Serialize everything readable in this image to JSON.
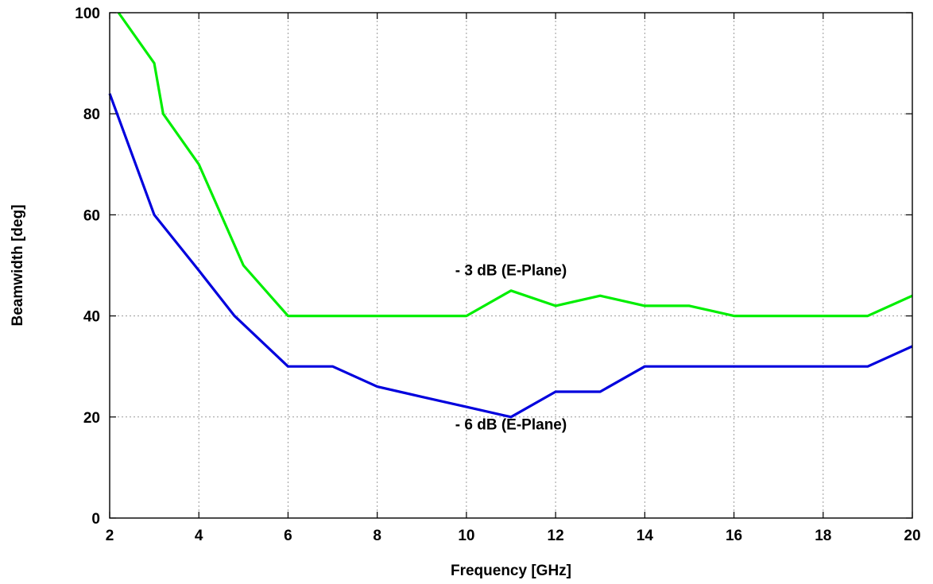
{
  "chart_data": {
    "type": "line",
    "xlabel": "Frequency [GHz]",
    "ylabel": "Beamwidth [deg]",
    "xlim": [
      2,
      20
    ],
    "ylim": [
      0,
      100
    ],
    "xticks": [
      2,
      4,
      6,
      8,
      10,
      12,
      14,
      16,
      18,
      20
    ],
    "yticks": [
      0,
      20,
      40,
      60,
      80,
      100
    ],
    "grid": true,
    "series": [
      {
        "label": "- 3 dB (E-Plane)",
        "color": "#00ee00",
        "points": [
          [
            2.2,
            100
          ],
          [
            3,
            90
          ],
          [
            3.2,
            80
          ],
          [
            4,
            70
          ],
          [
            5,
            50
          ],
          [
            6,
            40
          ],
          [
            7,
            40
          ],
          [
            8,
            40
          ],
          [
            9,
            40
          ],
          [
            10,
            40
          ],
          [
            11,
            45
          ],
          [
            12,
            42
          ],
          [
            13,
            44
          ],
          [
            14,
            42
          ],
          [
            15,
            42
          ],
          [
            16,
            40
          ],
          [
            17,
            40
          ],
          [
            18,
            40
          ],
          [
            19,
            40
          ],
          [
            20,
            44
          ]
        ]
      },
      {
        "label": "- 6 dB (E-Plane)",
        "color": "#0000dd",
        "points": [
          [
            2,
            84
          ],
          [
            3,
            60
          ],
          [
            4,
            49
          ],
          [
            4.8,
            40
          ],
          [
            6,
            30
          ],
          [
            7,
            30
          ],
          [
            8,
            26
          ],
          [
            9,
            24
          ],
          [
            10,
            22
          ],
          [
            11,
            20
          ],
          [
            12,
            25
          ],
          [
            13,
            25
          ],
          [
            14,
            30
          ],
          [
            15,
            30
          ],
          [
            16,
            30
          ],
          [
            17,
            30
          ],
          [
            18,
            30
          ],
          [
            19,
            30
          ],
          [
            20,
            34
          ]
        ]
      }
    ],
    "annotations": [
      {
        "text": "- 3 dB (E-Plane)",
        "x": 11,
        "y": 48,
        "series": 0
      },
      {
        "text": "- 6 dB (E-Plane)",
        "x": 11,
        "y": 17.5,
        "series": 1
      }
    ]
  }
}
